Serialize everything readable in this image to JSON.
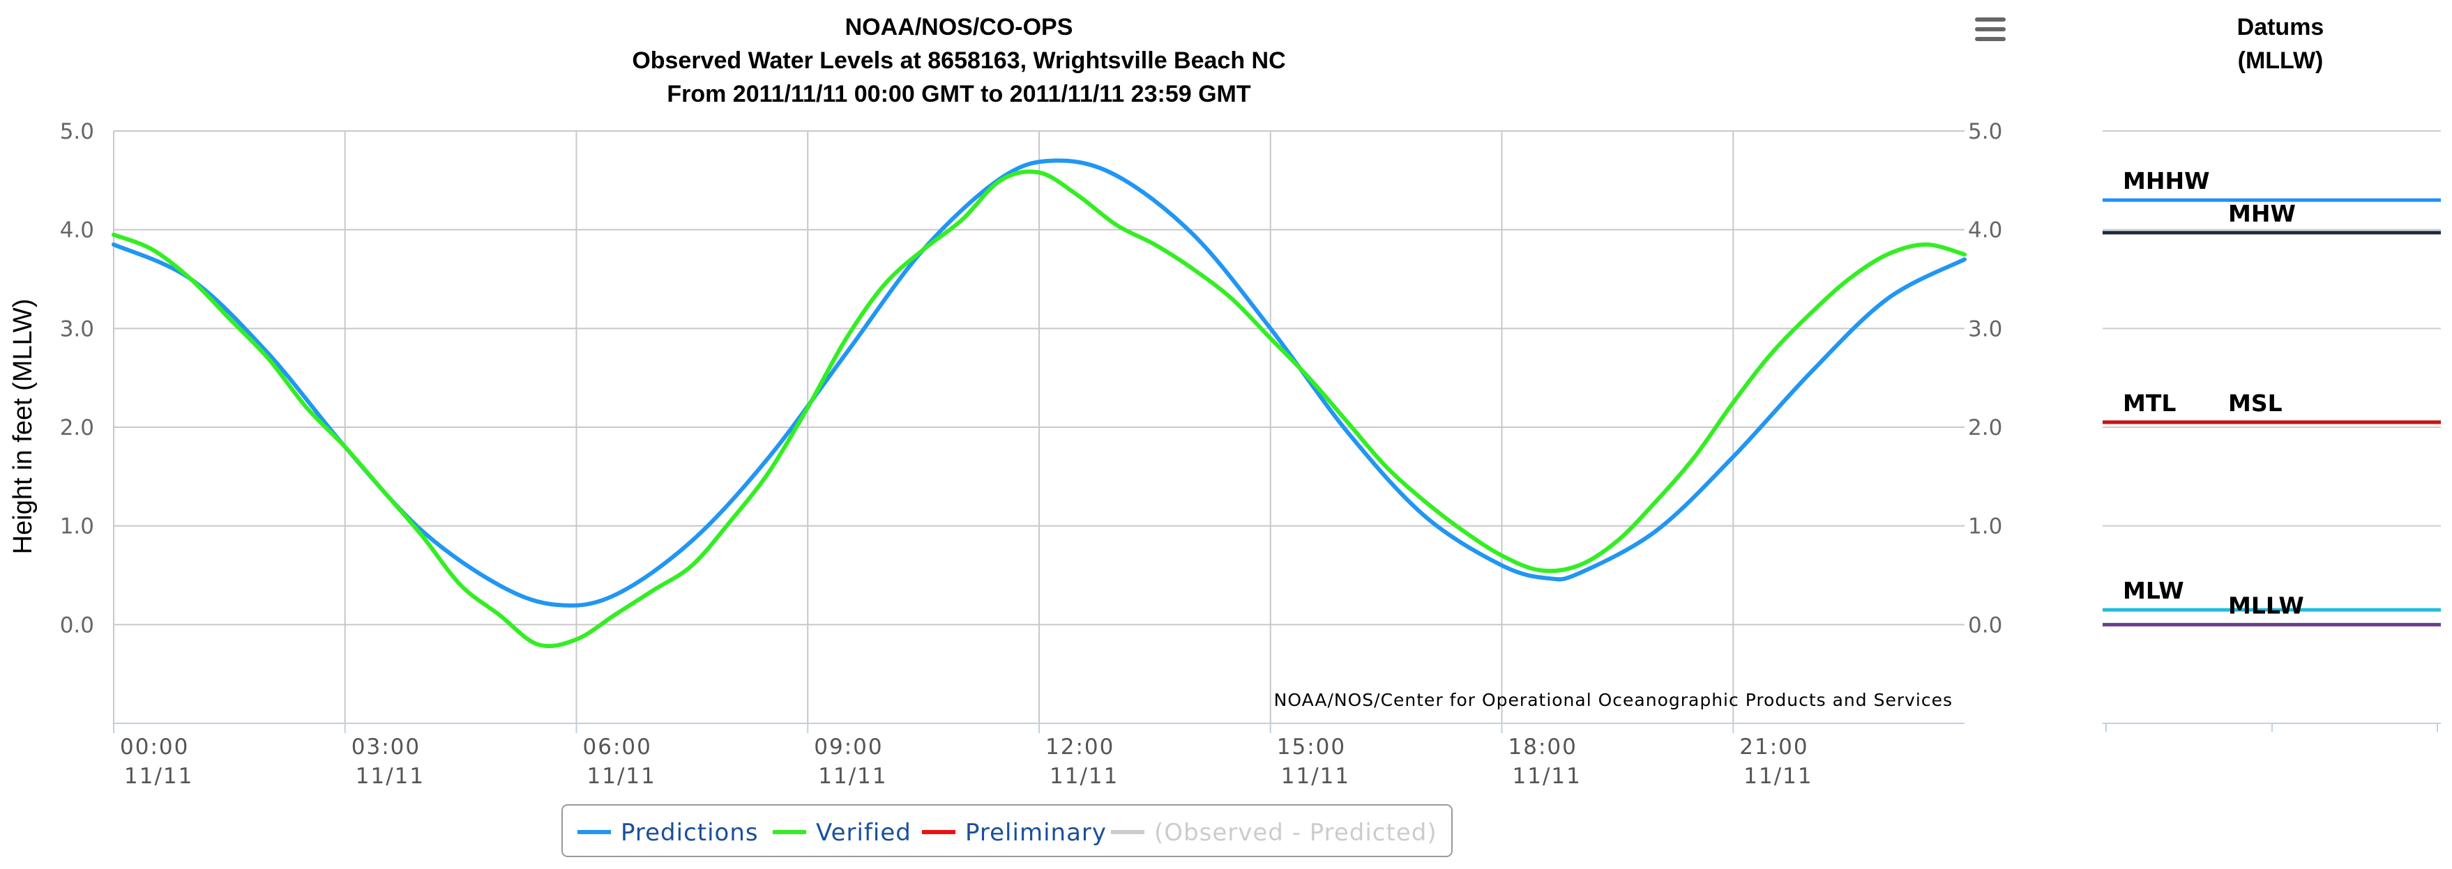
{
  "chart_data": {
    "type": "line",
    "title": "NOAA/NOS/CO-OPS",
    "subtitle": "Observed Water Levels at 8658163, Wrightsville Beach NC",
    "range_text": "From 2011/11/11 00:00 GMT to 2011/11/11 23:59 GMT",
    "ylabel": "Height in feet (MLLW)",
    "ylim": [
      -1,
      5
    ],
    "yticks": [
      "5.0",
      "4.0",
      "3.0",
      "2.0",
      "1.0",
      "0.0"
    ],
    "yticks_right": [
      "5.0",
      "4.0",
      "3.0",
      "2.0",
      "1.0",
      "0.0"
    ],
    "xlim": [
      0,
      24
    ],
    "xticks": [
      {
        "t": "00:00",
        "d": "11/11"
      },
      {
        "t": "03:00",
        "d": "11/11"
      },
      {
        "t": "06:00",
        "d": "11/11"
      },
      {
        "t": "09:00",
        "d": "11/11"
      },
      {
        "t": "12:00",
        "d": "11/11"
      },
      {
        "t": "15:00",
        "d": "11/11"
      },
      {
        "t": "18:00",
        "d": "11/11"
      },
      {
        "t": "21:00",
        "d": "11/11"
      }
    ],
    "credit": "NOAA/NOS/Center for Operational Oceanographic Products and Services",
    "series": [
      {
        "name": "Predictions",
        "color": "#2196f3",
        "x": [
          0,
          1,
          2,
          3,
          4,
          5,
          5.75,
          6.5,
          7.5,
          8.5,
          9.5,
          10.5,
          11.5,
          12.2,
          13,
          14,
          15,
          16,
          17,
          18,
          18.6,
          19,
          20,
          21,
          22,
          23,
          24
        ],
        "y": [
          3.85,
          3.5,
          2.75,
          1.8,
          0.95,
          0.4,
          0.2,
          0.3,
          0.85,
          1.7,
          2.75,
          3.8,
          4.52,
          4.7,
          4.55,
          3.95,
          3.0,
          1.95,
          1.1,
          0.6,
          0.47,
          0.52,
          0.95,
          1.7,
          2.55,
          3.3,
          3.7
        ]
      },
      {
        "name": "Verified",
        "color": "#33ee22",
        "x": [
          0,
          0.5,
          1,
          1.5,
          2,
          2.5,
          3,
          3.5,
          4,
          4.5,
          5,
          5.5,
          6,
          6.5,
          7,
          7.5,
          8,
          8.5,
          9,
          9.5,
          10,
          10.5,
          11,
          11.5,
          12,
          12.5,
          13,
          13.5,
          14,
          14.5,
          15,
          15.5,
          16,
          16.5,
          17,
          17.5,
          18,
          18.5,
          19,
          19.5,
          20,
          20.5,
          21,
          21.5,
          22,
          22.5,
          23,
          23.5,
          24
        ],
        "y": [
          3.95,
          3.8,
          3.5,
          3.1,
          2.7,
          2.2,
          1.8,
          1.35,
          0.9,
          0.4,
          0.1,
          -0.2,
          -0.15,
          0.1,
          0.35,
          0.6,
          1.05,
          1.55,
          2.2,
          2.9,
          3.45,
          3.8,
          4.1,
          4.5,
          4.58,
          4.35,
          4.05,
          3.85,
          3.6,
          3.3,
          2.9,
          2.5,
          2.05,
          1.6,
          1.25,
          0.95,
          0.7,
          0.55,
          0.6,
          0.85,
          1.25,
          1.7,
          2.25,
          2.75,
          3.15,
          3.5,
          3.75,
          3.85,
          3.75
        ]
      },
      {
        "name": "Preliminary",
        "color": "#ee1111",
        "x": [],
        "y": []
      },
      {
        "name": "(Observed - Predicted)",
        "color": "#cccccc",
        "x": [],
        "y": []
      }
    ],
    "datums": {
      "title": "Datums",
      "subtitle": "(MLLW)",
      "items": [
        {
          "name": "MHHW",
          "value": 4.3,
          "color": "#1e90ff"
        },
        {
          "name": "MHW",
          "value": 3.97,
          "color": "#1c2a3a"
        },
        {
          "name": "MTL",
          "value": 2.05,
          "color": "#7a1515"
        },
        {
          "name": "MSL",
          "value": 2.05,
          "color": "#cc1111"
        },
        {
          "name": "MLW",
          "value": 0.15,
          "color": "#22bbdd"
        },
        {
          "name": "MLLW",
          "value": 0.0,
          "color": "#6a3d8f"
        }
      ]
    }
  },
  "legend": {
    "items": [
      {
        "label": "Predictions",
        "color": "#2196f3",
        "text_color": "#1a4f9c"
      },
      {
        "label": "Verified",
        "color": "#33ee22",
        "text_color": "#1a4f9c"
      },
      {
        "label": "Preliminary",
        "color": "#ee1111",
        "text_color": "#1a4f9c"
      },
      {
        "label": "(Observed - Predicted)",
        "color": "#cccccc",
        "text_color": "#cccccc"
      }
    ]
  },
  "menu": {
    "icon": "hamburger-menu-icon"
  }
}
